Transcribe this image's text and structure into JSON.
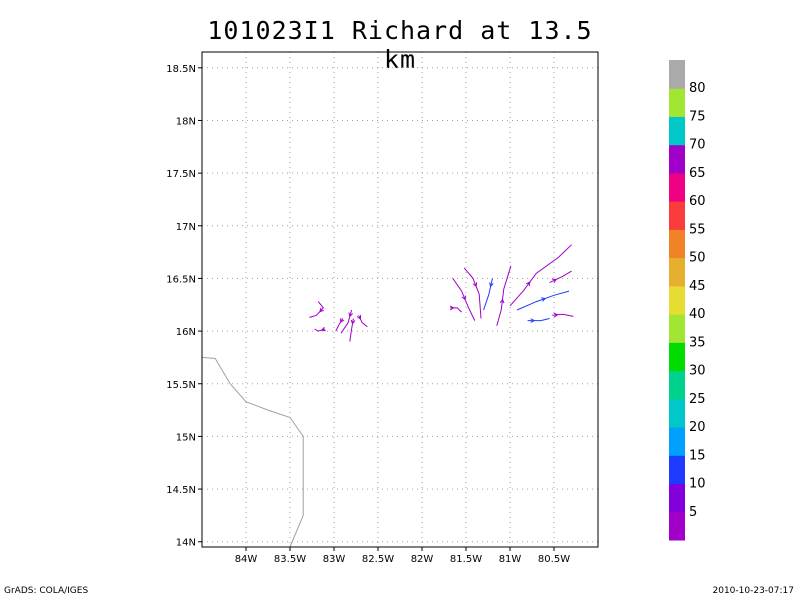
{
  "title": "101023I1 Richard at 13.5 km",
  "footer_left": "GrADS: COLA/IGES",
  "footer_right": "2010-10-23-07:17",
  "map": {
    "lon_range": [
      -84.5,
      -80.0
    ],
    "lat_range": [
      13.95,
      18.65
    ],
    "lon_ticks": [
      {
        "value": -84.0,
        "label": "84W"
      },
      {
        "value": -83.5,
        "label": "83.5W"
      },
      {
        "value": -83.0,
        "label": "83W"
      },
      {
        "value": -82.5,
        "label": "82.5W"
      },
      {
        "value": -82.0,
        "label": "82W"
      },
      {
        "value": -81.5,
        "label": "81.5W"
      },
      {
        "value": -81.0,
        "label": "81W"
      },
      {
        "value": -80.5,
        "label": "80.5W"
      }
    ],
    "lat_ticks": [
      {
        "value": 14.0,
        "label": "14N"
      },
      {
        "value": 14.5,
        "label": "14.5N"
      },
      {
        "value": 15.0,
        "label": "15N"
      },
      {
        "value": 15.5,
        "label": "15.5N"
      },
      {
        "value": 16.0,
        "label": "16N"
      },
      {
        "value": 16.5,
        "label": "16.5N"
      },
      {
        "value": 17.0,
        "label": "17N"
      },
      {
        "value": 17.5,
        "label": "17.5N"
      },
      {
        "value": 18.0,
        "label": "18N"
      },
      {
        "value": 18.5,
        "label": "18.5N"
      }
    ],
    "grid": true,
    "coastline_color": "#a0a0a0",
    "coastline": [
      [
        -84.5,
        15.75
      ],
      [
        -84.35,
        15.74
      ],
      [
        -84.18,
        15.5
      ],
      [
        -84.0,
        15.33
      ],
      [
        -83.75,
        15.25
      ],
      [
        -83.5,
        15.18
      ],
      [
        -83.35,
        15.0
      ],
      [
        -83.35,
        14.25
      ],
      [
        -83.5,
        13.95
      ]
    ]
  },
  "colorbar": {
    "labels": [
      "5",
      "10",
      "15",
      "20",
      "25",
      "30",
      "35",
      "40",
      "45",
      "50",
      "55",
      "60",
      "65",
      "70",
      "75",
      "80"
    ],
    "colors": [
      "#a000c8",
      "#8200dc",
      "#1e3cff",
      "#00a0ff",
      "#00c8c8",
      "#00d28c",
      "#00dc00",
      "#a0e632",
      "#e6dc32",
      "#e6af2d",
      "#f08228",
      "#fa3c3c",
      "#f00082",
      "#a000c8",
      "#00c8c8",
      "#a0e632",
      "#aaaaaa"
    ]
  },
  "chart_data": {
    "type": "streamlines",
    "title": "101023I1 Richard at 13.5 km",
    "xlabel": "",
    "ylabel": "",
    "x_range": [
      -84.5,
      -80.0
    ],
    "y_range": [
      13.95,
      18.65
    ],
    "streamlines": [
      {
        "color": "#a000c8",
        "points": [
          [
            -83.18,
            16.28
          ],
          [
            -83.12,
            16.22
          ],
          [
            -83.2,
            16.15
          ],
          [
            -83.28,
            16.13
          ]
        ]
      },
      {
        "color": "#a000c8",
        "points": [
          [
            -83.1,
            16.02
          ],
          [
            -83.18,
            16.0
          ],
          [
            -83.22,
            16.02
          ]
        ]
      },
      {
        "color": "#a000c8",
        "points": [
          [
            -82.9,
            16.12
          ],
          [
            -82.95,
            16.05
          ],
          [
            -82.98,
            16.0
          ]
        ]
      },
      {
        "color": "#a000c8",
        "points": [
          [
            -82.8,
            16.2
          ],
          [
            -82.84,
            16.08
          ],
          [
            -82.92,
            15.98
          ]
        ]
      },
      {
        "color": "#a000c8",
        "points": [
          [
            -82.78,
            16.12
          ],
          [
            -82.8,
            16.02
          ],
          [
            -82.82,
            15.9
          ]
        ]
      },
      {
        "color": "#a000c8",
        "points": [
          [
            -82.72,
            16.15
          ],
          [
            -82.68,
            16.08
          ],
          [
            -82.62,
            16.04
          ]
        ]
      },
      {
        "color": "#a000c8",
        "points": [
          [
            -81.68,
            16.22
          ],
          [
            -81.6,
            16.22
          ],
          [
            -81.55,
            16.18
          ]
        ]
      },
      {
        "color": "#a000c8",
        "points": [
          [
            -81.65,
            16.5
          ],
          [
            -81.55,
            16.38
          ],
          [
            -81.47,
            16.22
          ],
          [
            -81.4,
            16.1
          ]
        ]
      },
      {
        "color": "#a000c8",
        "points": [
          [
            -81.52,
            16.6
          ],
          [
            -81.42,
            16.5
          ],
          [
            -81.35,
            16.35
          ],
          [
            -81.33,
            16.12
          ]
        ]
      },
      {
        "color": "#1e3cff",
        "points": [
          [
            -81.2,
            16.5
          ],
          [
            -81.24,
            16.35
          ],
          [
            -81.3,
            16.2
          ]
        ]
      },
      {
        "color": "#a000c8",
        "points": [
          [
            -81.15,
            16.05
          ],
          [
            -81.1,
            16.2
          ],
          [
            -81.07,
            16.4
          ],
          [
            -80.99,
            16.62
          ]
        ]
      },
      {
        "color": "#a000c8",
        "points": [
          [
            -81.0,
            16.24
          ],
          [
            -80.85,
            16.38
          ],
          [
            -80.7,
            16.55
          ],
          [
            -80.45,
            16.7
          ],
          [
            -80.3,
            16.82
          ]
        ]
      },
      {
        "color": "#a000c8",
        "points": [
          [
            -80.55,
            16.46
          ],
          [
            -80.4,
            16.52
          ],
          [
            -80.3,
            16.57
          ]
        ]
      },
      {
        "color": "#1e3cff",
        "points": [
          [
            -80.92,
            16.2
          ],
          [
            -80.7,
            16.28
          ],
          [
            -80.5,
            16.34
          ],
          [
            -80.33,
            16.38
          ]
        ]
      },
      {
        "color": "#1e3cff",
        "points": [
          [
            -80.8,
            16.1
          ],
          [
            -80.65,
            16.1
          ],
          [
            -80.55,
            16.12
          ]
        ]
      },
      {
        "color": "#a000c8",
        "points": [
          [
            -80.52,
            16.15
          ],
          [
            -80.4,
            16.16
          ],
          [
            -80.28,
            16.14
          ]
        ]
      }
    ]
  }
}
